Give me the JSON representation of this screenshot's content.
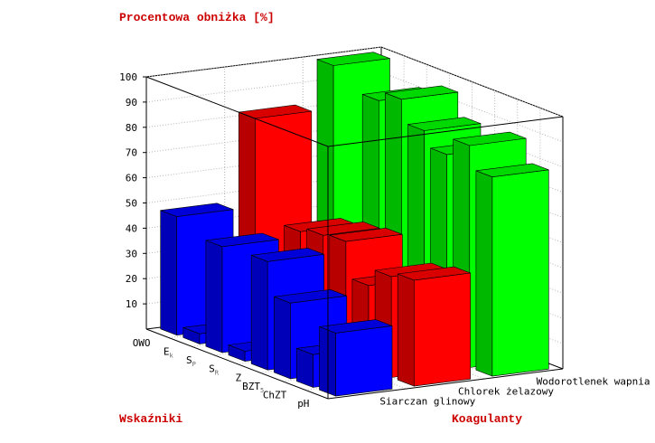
{
  "chart_data": {
    "type": "bar3d",
    "title": "Procentowa obniżka [%]",
    "xlabel": "Wskaźniki",
    "ylabel": "Koagulanty",
    "zlim": [
      0,
      100
    ],
    "z_ticks": [
      "10",
      "20",
      "30",
      "40",
      "50",
      "60",
      "70",
      "80",
      "90",
      "100"
    ],
    "categories": [
      {
        "label": "OWO",
        "sub": ""
      },
      {
        "label": "E",
        "sub": "k"
      },
      {
        "label": "S",
        "sub": "P"
      },
      {
        "label": "S",
        "sub": "R"
      },
      {
        "label": "Z",
        "sub": ""
      },
      {
        "label": "BZT",
        "sub": "5"
      },
      {
        "label": "ChZT",
        "sub": ""
      },
      {
        "label": "pH",
        "sub": ""
      }
    ],
    "series": [
      {
        "name": "Siarczan glinowy",
        "color": "#0000ff",
        "values": [
          47,
          4,
          42,
          4,
          43,
          30,
          13,
          25
        ]
      },
      {
        "name": "Chlorek żelazowy",
        "color": "#ff0000",
        "values": [
          82,
          0,
          44,
          46,
          47,
          33,
          40,
          42
        ]
      },
      {
        "name": "Wodorotlenek wapnia",
        "color": "#00ff00",
        "values": [
          99,
          0,
          92,
          96,
          87,
          81,
          88,
          79
        ]
      }
    ]
  }
}
